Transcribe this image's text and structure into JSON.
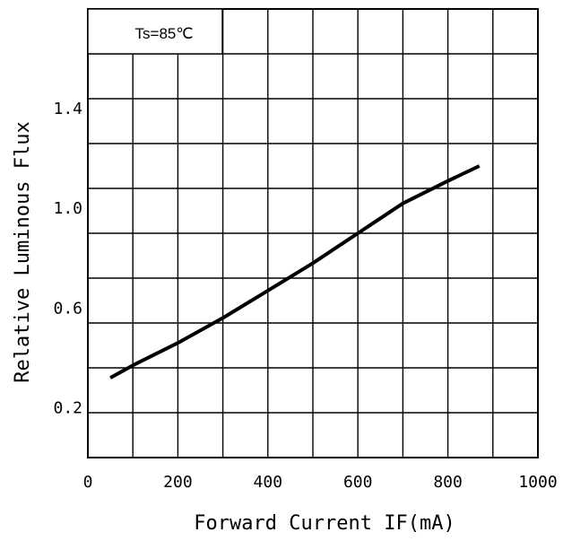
{
  "chart_data": {
    "type": "line",
    "title": "",
    "xlabel": "Forward Current IF(mA)",
    "ylabel": "Relative Luminous Flux",
    "xlim": [
      0,
      1000
    ],
    "ylim": [
      0,
      1.8
    ],
    "x_ticks": [
      0,
      200,
      400,
      600,
      800,
      1000
    ],
    "x_tick_labels": [
      "0",
      "200",
      "400",
      "600",
      "800",
      "1000"
    ],
    "y_ticks": [
      0.2,
      0.6,
      1.0,
      1.4
    ],
    "y_tick_labels": [
      "0.2",
      "0.6",
      "1.0",
      "1.4"
    ],
    "grid": true,
    "annotation": "Ts=85℃",
    "series": [
      {
        "x": [
          50,
          100,
          200,
          300,
          400,
          500,
          600,
          700,
          800,
          870
        ],
        "y": [
          0.32,
          0.37,
          0.46,
          0.56,
          0.67,
          0.78,
          0.9,
          1.02,
          1.11,
          1.17
        ]
      }
    ]
  }
}
